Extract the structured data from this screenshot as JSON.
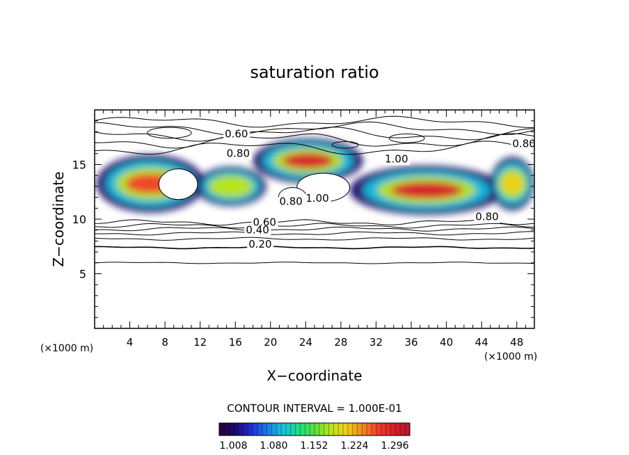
{
  "chart_data": {
    "type": "heatmap",
    "title": "saturation ratio",
    "xlabel": "X−coordinate",
    "ylabel": "Z−coordinate",
    "x_unit_left": "(×1000 m)",
    "x_unit_right": "(×1000 m)",
    "xlim": [
      0,
      50
    ],
    "ylim": [
      0,
      20
    ],
    "x_ticks": [
      4,
      8,
      12,
      16,
      20,
      24,
      28,
      32,
      36,
      40,
      44,
      48
    ],
    "y_ticks": [
      5,
      10,
      15
    ],
    "contour_interval_label": "CONTOUR INTERVAL = 1.000E-01",
    "contour_labels": [
      {
        "text": "0.60",
        "x": 14.8,
        "z": 17.5
      },
      {
        "text": "0.80",
        "x": 15.0,
        "z": 15.7
      },
      {
        "text": "0.80",
        "x": 47.5,
        "z": 16.6
      },
      {
        "text": "0.80",
        "x": 43.3,
        "z": 9.9
      },
      {
        "text": "0.60",
        "x": 18.0,
        "z": 9.4
      },
      {
        "text": "0.40",
        "x": 17.2,
        "z": 8.7
      },
      {
        "text": "0.20",
        "x": 17.5,
        "z": 7.4
      },
      {
        "text": "0.80",
        "x": 21.0,
        "z": 11.3
      },
      {
        "text": "1.00",
        "x": 24.0,
        "z": 11.6
      },
      {
        "text": "1.00",
        "x": 33.0,
        "z": 15.2
      }
    ],
    "contour_levels_z": [
      {
        "level": "0.10",
        "z": 6.0
      },
      {
        "level": "0.20",
        "z": 7.4
      },
      {
        "level": "0.30",
        "z": 8.2
      },
      {
        "level": "0.40",
        "z": 8.7
      },
      {
        "level": "0.50",
        "z": 9.1
      },
      {
        "level": "0.60",
        "z": 9.4
      },
      {
        "level": "0.70",
        "z": 9.7
      }
    ],
    "colorbar": {
      "ticks": [
        "1.008",
        "1.080",
        "1.152",
        "1.224",
        "1.296"
      ],
      "min": 1.0,
      "max": 1.34,
      "colors": [
        "#2a0033",
        "#1a0a6e",
        "#1f2fd0",
        "#1a7be8",
        "#18c0e0",
        "#1fdd88",
        "#55e23a",
        "#b8e41f",
        "#f0d01a",
        "#f28a1f",
        "#f0402a",
        "#d81e2e",
        "#b5162a"
      ]
    },
    "moist_regions": [
      {
        "x0": 0.2,
        "x1": 12.5,
        "z0": 10.6,
        "z1": 15.9,
        "peak": 1.29
      },
      {
        "x0": 11.5,
        "x1": 19.5,
        "z0": 11.2,
        "z1": 14.8,
        "peak": 1.2
      },
      {
        "x0": 18.0,
        "x1": 30.5,
        "z0": 13.3,
        "z1": 17.4,
        "peak": 1.3
      },
      {
        "x0": 29.0,
        "x1": 46.5,
        "z0": 10.4,
        "z1": 14.9,
        "peak": 1.31
      },
      {
        "x0": 45.0,
        "x1": 50.0,
        "z0": 10.8,
        "z1": 15.7,
        "peak": 1.22
      }
    ]
  }
}
